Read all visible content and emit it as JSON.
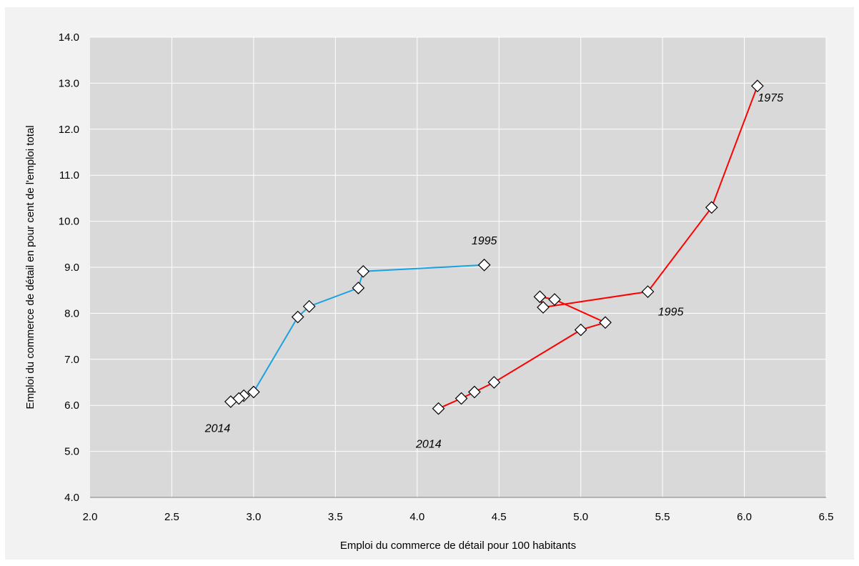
{
  "chart_data": {
    "type": "scatter",
    "title": "",
    "xlabel": "Emploi du commerce de détail pour 100 habitants",
    "ylabel": "Emploi du commerce de détail en pour cent de l'emploi total",
    "xlim": [
      2.0,
      6.5
    ],
    "ylim": [
      4.0,
      14.0
    ],
    "x_ticks": [
      "2.0",
      "2.5",
      "3.0",
      "3.5",
      "4.0",
      "4.5",
      "5.0",
      "5.5",
      "6.0",
      "6.5"
    ],
    "y_ticks": [
      "4.0",
      "5.0",
      "6.0",
      "7.0",
      "8.0",
      "9.0",
      "10.0",
      "11.0",
      "12.0",
      "13.0",
      "14.0"
    ],
    "grid": true,
    "plot_background": "#d9d9d9",
    "grid_color": "#ffffff",
    "frame_background": "#f2f2f2",
    "marker": "diamond",
    "series": [
      {
        "color": "#1ba1e2",
        "points": [
          {
            "x": 4.41,
            "y": 9.05
          },
          {
            "x": 3.67,
            "y": 8.91
          },
          {
            "x": 3.64,
            "y": 8.55
          },
          {
            "x": 3.34,
            "y": 8.15
          },
          {
            "x": 3.27,
            "y": 7.92
          },
          {
            "x": 3.0,
            "y": 6.29
          },
          {
            "x": 2.94,
            "y": 6.21
          },
          {
            "x": 2.91,
            "y": 6.15
          },
          {
            "x": 2.86,
            "y": 6.08
          }
        ]
      },
      {
        "color": "#ff0000",
        "points": [
          {
            "x": 6.08,
            "y": 12.94
          },
          {
            "x": 5.8,
            "y": 10.3
          },
          {
            "x": 5.41,
            "y": 8.47
          },
          {
            "x": 4.77,
            "y": 8.13
          },
          {
            "x": 4.75,
            "y": 8.36
          },
          {
            "x": 4.84,
            "y": 8.3
          },
          {
            "x": 5.15,
            "y": 7.8
          },
          {
            "x": 5.0,
            "y": 7.64
          },
          {
            "x": 4.47,
            "y": 6.5
          },
          {
            "x": 4.35,
            "y": 6.29
          },
          {
            "x": 4.27,
            "y": 6.15
          },
          {
            "x": 4.13,
            "y": 5.93
          }
        ]
      }
    ],
    "annotations": [
      {
        "text": "1995",
        "x": 4.41,
        "y": 9.5
      },
      {
        "text": "2014",
        "x": 2.78,
        "y": 5.42
      },
      {
        "text": "1975",
        "x": 6.16,
        "y": 12.6
      },
      {
        "text": "1995",
        "x": 5.55,
        "y": 7.95
      },
      {
        "text": "2014",
        "x": 4.07,
        "y": 5.08
      }
    ]
  }
}
